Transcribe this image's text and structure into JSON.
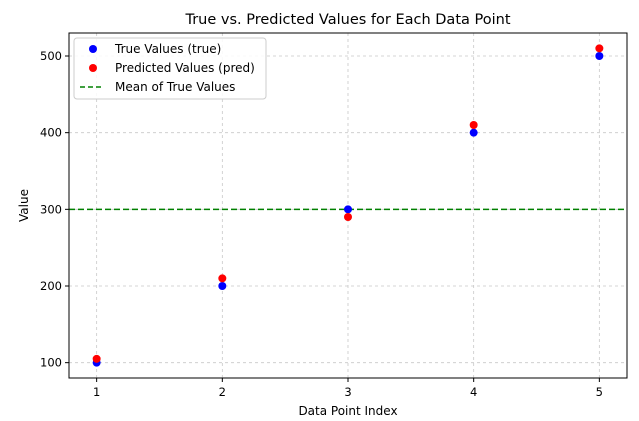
{
  "chart_data": {
    "type": "scatter",
    "title": "True vs. Predicted Values for Each Data Point",
    "xlabel": "Data Point Index",
    "ylabel": "Value",
    "x": [
      1,
      2,
      3,
      4,
      5
    ],
    "xticks": [
      "1",
      "2",
      "3",
      "4",
      "5"
    ],
    "yticks": [
      "100",
      "200",
      "300",
      "400",
      "500"
    ],
    "ylim": [
      80,
      530
    ],
    "xlim": [
      0.78,
      5.22
    ],
    "grid": true,
    "legend_position": "top-left",
    "series": [
      {
        "name": "True Values (true)",
        "color": "#0000ff",
        "values": [
          100,
          200,
          300,
          400,
          500
        ]
      },
      {
        "name": "Predicted Values (pred)",
        "color": "#ff0000",
        "values": [
          105,
          210,
          290,
          410,
          510
        ]
      }
    ],
    "reference_line": {
      "name": "Mean of True Values",
      "value": 300,
      "color": "#008000",
      "style": "dashed"
    }
  }
}
